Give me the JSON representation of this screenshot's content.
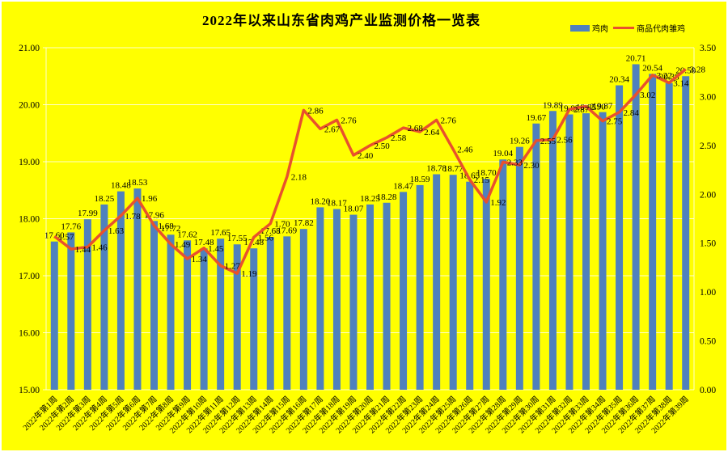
{
  "title": "2022年以来山东省肉鸡产业监测价格一览表",
  "legend": {
    "bar": {
      "label": "鸡肉"
    },
    "line": {
      "label": "商品代肉雏鸡"
    }
  },
  "colors": {
    "background": "#FFFF00",
    "bar": "#4F81BD",
    "line": "#E8512D",
    "gridline": "#FFFFFF",
    "text": "#000000"
  },
  "chart_data": {
    "type": "combo",
    "title": "2022年以来山东省肉鸡产业监测价格一览表",
    "categories": [
      "2022年第1周",
      "2022年第2周",
      "2022年第3周",
      "2022年第4周",
      "2022年第5周",
      "2022年第6周",
      "2022年第7周",
      "2022年第8周",
      "2022年第9周",
      "2022年第10周",
      "2022年第11周",
      "2022年第12周",
      "2022年第13周",
      "2022年第14周",
      "2022年第15周",
      "2022年第16周",
      "2022年第17周",
      "2022年第18周",
      "2022年第19周",
      "2022年第20周",
      "2022年第21周",
      "2022年第22周",
      "2022年第23周",
      "2022年第24周",
      "2022年第25周",
      "2022年第26周",
      "2022年第27周",
      "2022年第28周",
      "2022年第29周",
      "2022年第30周",
      "2022年第31周",
      "2022年第32周",
      "2022年第33周",
      "2022年第34周",
      "2022年第35周",
      "2022年第36周",
      "2022年第37周",
      "2022年第38周",
      "2022年第39周"
    ],
    "series": [
      {
        "name": "鸡肉",
        "chart": "bar",
        "axis": "left",
        "color": "#4F81BD",
        "values": [
          17.6,
          17.76,
          17.99,
          18.25,
          18.48,
          18.53,
          17.96,
          17.72,
          17.62,
          17.48,
          17.65,
          17.55,
          17.48,
          17.68,
          17.69,
          17.82,
          18.2,
          18.17,
          18.07,
          18.25,
          18.28,
          18.47,
          18.59,
          18.78,
          18.77,
          18.65,
          18.7,
          19.04,
          19.26,
          19.67,
          19.89,
          19.83,
          19.85,
          19.87,
          20.34,
          20.71,
          20.54,
          20.38,
          20.5
        ]
      },
      {
        "name": "商品代肉雏鸡",
        "chart": "line",
        "axis": "right",
        "color": "#E8512D",
        "values": [
          1.57,
          1.44,
          1.46,
          1.63,
          1.78,
          1.96,
          1.68,
          1.49,
          1.34,
          1.45,
          1.27,
          1.19,
          1.56,
          1.7,
          2.18,
          2.86,
          2.67,
          2.76,
          2.4,
          2.5,
          2.58,
          2.68,
          2.64,
          2.76,
          2.46,
          2.15,
          1.92,
          2.33,
          2.3,
          2.55,
          2.56,
          2.87,
          2.9,
          2.75,
          2.84,
          3.02,
          3.22,
          3.14,
          3.28
        ]
      }
    ],
    "left_axis": {
      "min": 15,
      "max": 21,
      "step": 1,
      "tick_labels": [
        "15.00",
        "16.00",
        "17.00",
        "18.00",
        "19.00",
        "20.00",
        "21.00"
      ]
    },
    "right_axis": {
      "min": 0,
      "max": 3.5,
      "step": 0.5,
      "tick_labels": [
        "0.00",
        "0.50",
        "1.00",
        "1.50",
        "2.00",
        "2.50",
        "3.00",
        "3.50"
      ]
    },
    "grid": true,
    "legend_position": "top-right",
    "data_labels": true
  }
}
